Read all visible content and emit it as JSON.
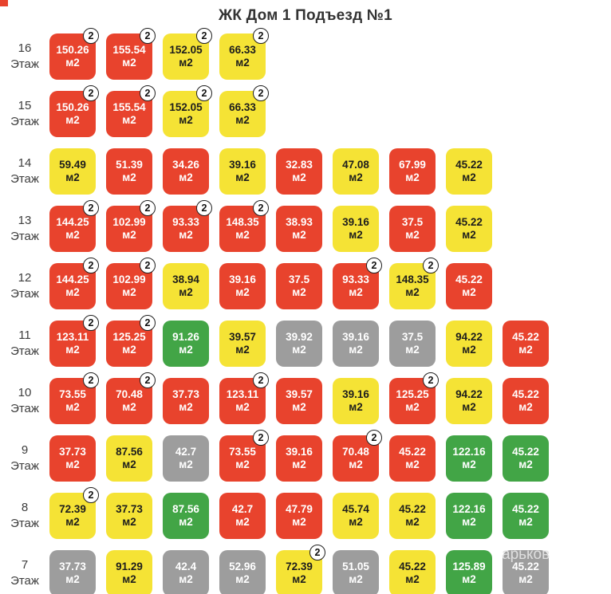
{
  "title": "ЖК Дом 1 Подъезд №1",
  "floor_word": "Этаж",
  "unit_suffix": "м2",
  "watermark": "арьков",
  "colors": {
    "red": "#e8432d",
    "yellow": "#f5e335",
    "green": "#42a546",
    "gray": "#9d9d9d",
    "tile_text_light": "#ffffff",
    "tile_text_dark": "#1d1d1d",
    "badge_bg": "#ffffff",
    "badge_border": "#1f1f1f"
  },
  "floors": [
    {
      "number": "16",
      "units": [
        {
          "area": "150.26",
          "color": "red",
          "badge": "2"
        },
        {
          "area": "155.54",
          "color": "red",
          "badge": "2"
        },
        {
          "area": "152.05",
          "color": "yellow",
          "badge": "2"
        },
        {
          "area": "66.33",
          "color": "yellow",
          "badge": "2"
        }
      ]
    },
    {
      "number": "15",
      "units": [
        {
          "area": "150.26",
          "color": "red",
          "badge": "2"
        },
        {
          "area": "155.54",
          "color": "red",
          "badge": "2"
        },
        {
          "area": "152.05",
          "color": "yellow",
          "badge": "2"
        },
        {
          "area": "66.33",
          "color": "yellow",
          "badge": "2"
        }
      ]
    },
    {
      "number": "14",
      "units": [
        {
          "area": "59.49",
          "color": "yellow",
          "badge": null
        },
        {
          "area": "51.39",
          "color": "red",
          "badge": null
        },
        {
          "area": "34.26",
          "color": "red",
          "badge": null
        },
        {
          "area": "39.16",
          "color": "yellow",
          "badge": null
        },
        {
          "area": "32.83",
          "color": "red",
          "badge": null
        },
        {
          "area": "47.08",
          "color": "yellow",
          "badge": null
        },
        {
          "area": "67.99",
          "color": "red",
          "badge": null
        },
        {
          "area": "45.22",
          "color": "yellow",
          "badge": null
        }
      ]
    },
    {
      "number": "13",
      "units": [
        {
          "area": "144.25",
          "color": "red",
          "badge": "2"
        },
        {
          "area": "102.99",
          "color": "red",
          "badge": "2"
        },
        {
          "area": "93.33",
          "color": "red",
          "badge": "2"
        },
        {
          "area": "148.35",
          "color": "red",
          "badge": "2"
        },
        {
          "area": "38.93",
          "color": "red",
          "badge": null
        },
        {
          "area": "39.16",
          "color": "yellow",
          "badge": null
        },
        {
          "area": "37.5",
          "color": "red",
          "badge": null
        },
        {
          "area": "45.22",
          "color": "yellow",
          "badge": null
        }
      ]
    },
    {
      "number": "12",
      "units": [
        {
          "area": "144.25",
          "color": "red",
          "badge": "2"
        },
        {
          "area": "102.99",
          "color": "red",
          "badge": "2"
        },
        {
          "area": "38.94",
          "color": "yellow",
          "badge": null
        },
        {
          "area": "39.16",
          "color": "red",
          "badge": null
        },
        {
          "area": "37.5",
          "color": "red",
          "badge": null
        },
        {
          "area": "93.33",
          "color": "red",
          "badge": "2"
        },
        {
          "area": "148.35",
          "color": "yellow",
          "badge": "2"
        },
        {
          "area": "45.22",
          "color": "red",
          "badge": null
        }
      ]
    },
    {
      "number": "11",
      "units": [
        {
          "area": "123.11",
          "color": "red",
          "badge": "2"
        },
        {
          "area": "125.25",
          "color": "red",
          "badge": "2"
        },
        {
          "area": "91.26",
          "color": "green",
          "badge": null
        },
        {
          "area": "39.57",
          "color": "yellow",
          "badge": null
        },
        {
          "area": "39.92",
          "color": "gray",
          "badge": null
        },
        {
          "area": "39.16",
          "color": "gray",
          "badge": null
        },
        {
          "area": "37.5",
          "color": "gray",
          "badge": null
        },
        {
          "area": "94.22",
          "color": "yellow",
          "badge": null
        },
        {
          "area": "45.22",
          "color": "red",
          "badge": null
        }
      ]
    },
    {
      "number": "10",
      "units": [
        {
          "area": "73.55",
          "color": "red",
          "badge": "2"
        },
        {
          "area": "70.48",
          "color": "red",
          "badge": "2"
        },
        {
          "area": "37.73",
          "color": "red",
          "badge": null
        },
        {
          "area": "123.11",
          "color": "red",
          "badge": "2"
        },
        {
          "area": "39.57",
          "color": "red",
          "badge": null
        },
        {
          "area": "39.16",
          "color": "yellow",
          "badge": null
        },
        {
          "area": "125.25",
          "color": "red",
          "badge": "2"
        },
        {
          "area": "94.22",
          "color": "yellow",
          "badge": null
        },
        {
          "area": "45.22",
          "color": "red",
          "badge": null
        }
      ]
    },
    {
      "number": "9",
      "units": [
        {
          "area": "37.73",
          "color": "red",
          "badge": null
        },
        {
          "area": "87.56",
          "color": "yellow",
          "badge": null
        },
        {
          "area": "42.7",
          "color": "gray",
          "badge": null
        },
        {
          "area": "73.55",
          "color": "red",
          "badge": "2"
        },
        {
          "area": "39.16",
          "color": "red",
          "badge": null
        },
        {
          "area": "70.48",
          "color": "red",
          "badge": "2"
        },
        {
          "area": "45.22",
          "color": "red",
          "badge": null
        },
        {
          "area": "122.16",
          "color": "green",
          "badge": null
        },
        {
          "area": "45.22",
          "color": "green",
          "badge": null
        }
      ]
    },
    {
      "number": "8",
      "units": [
        {
          "area": "72.39",
          "color": "yellow",
          "badge": "2"
        },
        {
          "area": "37.73",
          "color": "yellow",
          "badge": null
        },
        {
          "area": "87.56",
          "color": "green",
          "badge": null
        },
        {
          "area": "42.7",
          "color": "red",
          "badge": null
        },
        {
          "area": "47.79",
          "color": "red",
          "badge": null
        },
        {
          "area": "45.74",
          "color": "yellow",
          "badge": null
        },
        {
          "area": "45.22",
          "color": "yellow",
          "badge": null
        },
        {
          "area": "122.16",
          "color": "green",
          "badge": null
        },
        {
          "area": "45.22",
          "color": "green",
          "badge": null
        }
      ]
    },
    {
      "number": "7",
      "units": [
        {
          "area": "37.73",
          "color": "gray",
          "badge": null
        },
        {
          "area": "91.29",
          "color": "yellow",
          "badge": null
        },
        {
          "area": "42.4",
          "color": "gray",
          "badge": null
        },
        {
          "area": "52.96",
          "color": "gray",
          "badge": null
        },
        {
          "area": "72.39",
          "color": "yellow",
          "badge": "2"
        },
        {
          "area": "51.05",
          "color": "gray",
          "badge": null
        },
        {
          "area": "45.22",
          "color": "yellow",
          "badge": null
        },
        {
          "area": "125.89",
          "color": "green",
          "badge": null
        },
        {
          "area": "45.22",
          "color": "gray",
          "badge": null
        }
      ]
    }
  ]
}
